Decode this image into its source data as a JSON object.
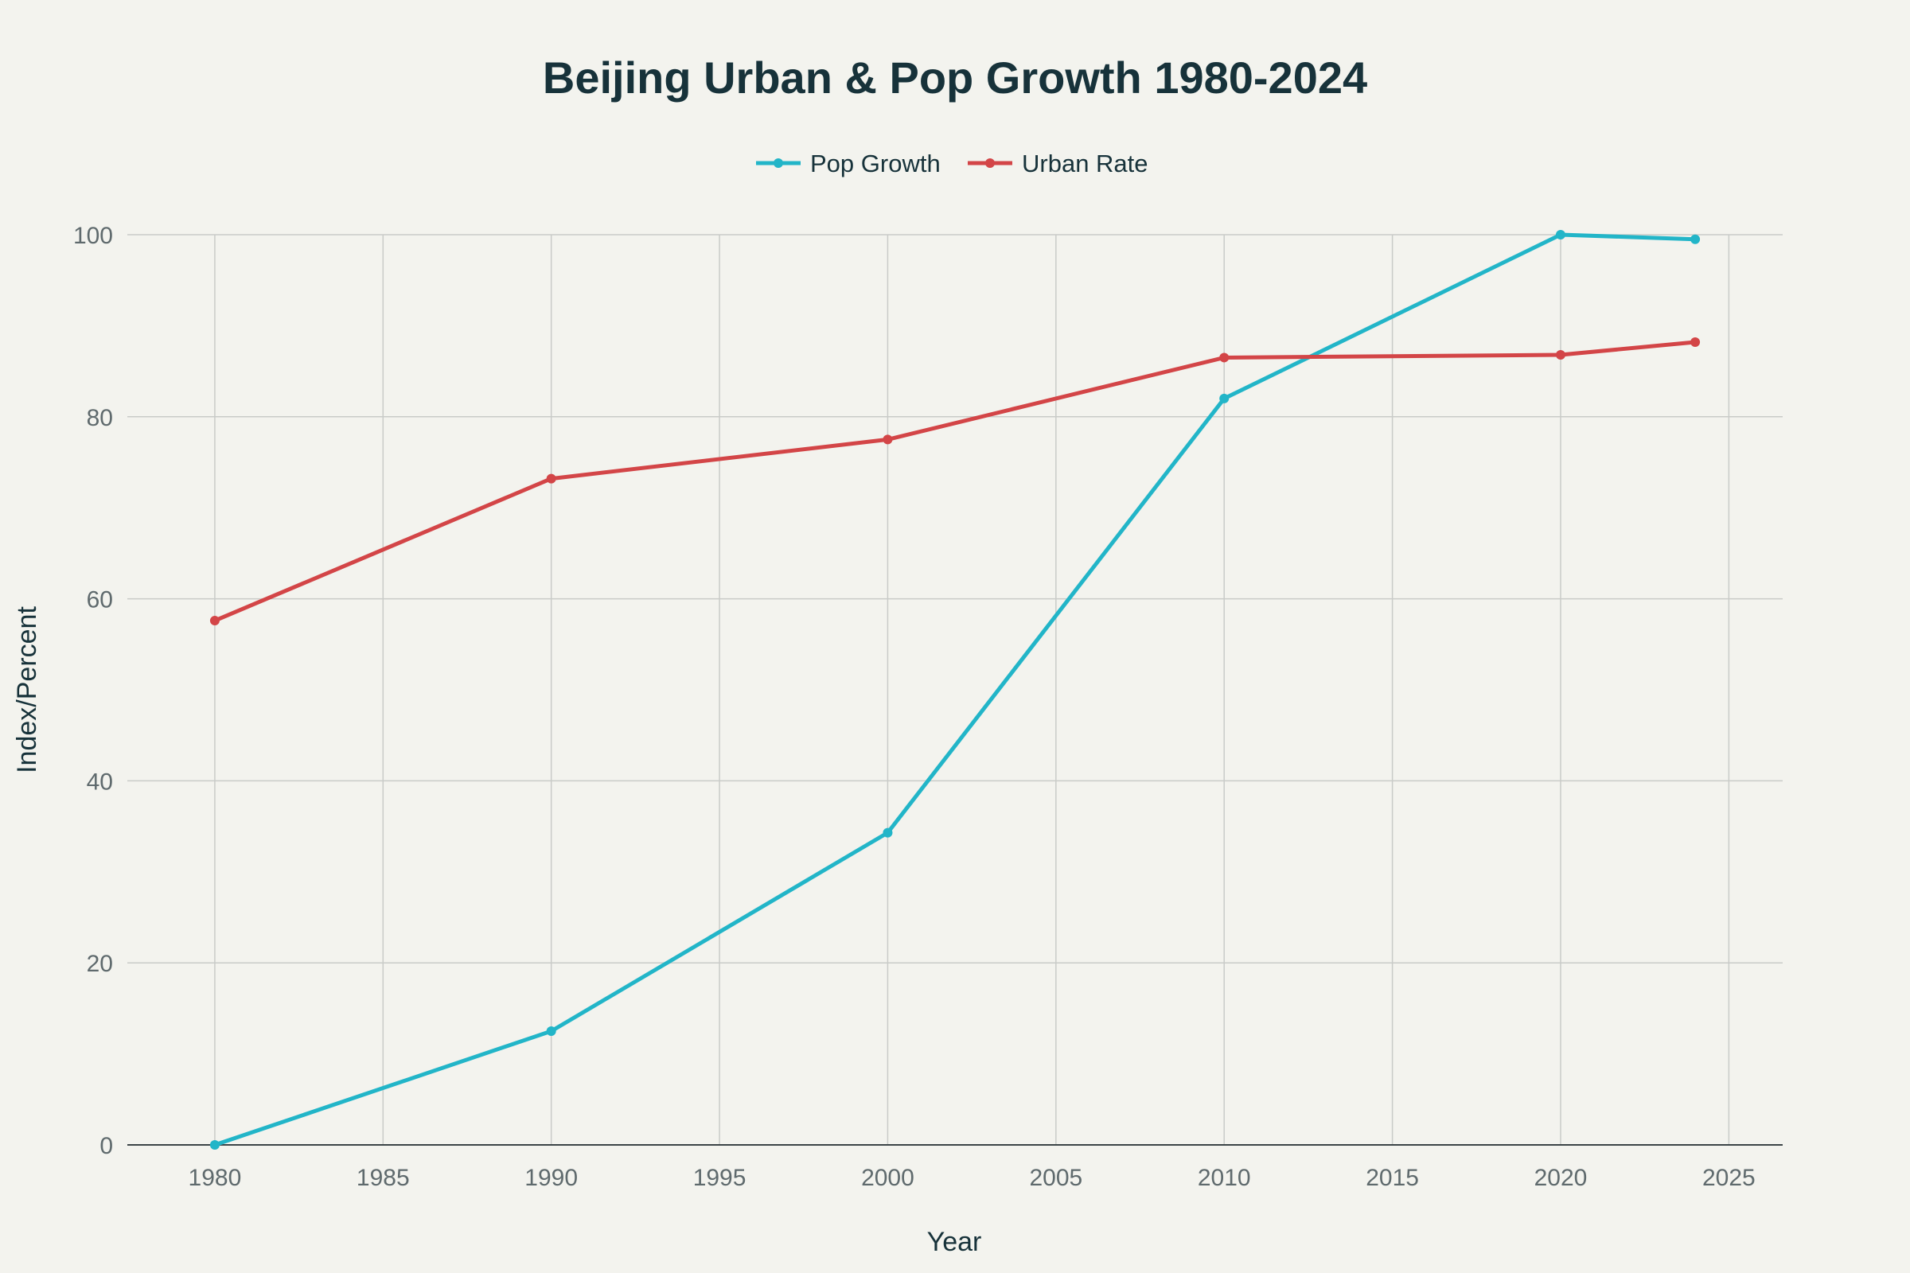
{
  "chart_data": {
    "type": "line",
    "title": "Beijing Urban & Pop Growth 1980-2024",
    "xlabel": "Year",
    "ylabel": "Index/Percent",
    "x": [
      1980,
      1990,
      2000,
      2010,
      2020,
      2024
    ],
    "xlim": [
      1977.4,
      2026.6
    ],
    "ylim": [
      0,
      100
    ],
    "x_ticks": [
      1980,
      1985,
      1990,
      1995,
      2000,
      2005,
      2010,
      2015,
      2020,
      2025
    ],
    "y_ticks": [
      0,
      20,
      40,
      60,
      80,
      100
    ],
    "grid": true,
    "legend_position": "top-center",
    "series": [
      {
        "name": "Pop Growth",
        "color": "#22b5c8",
        "values": [
          0,
          12.5,
          34.3,
          82.0,
          100.0,
          99.5
        ]
      },
      {
        "name": "Urban Rate",
        "color": "#d34547",
        "values": [
          57.6,
          73.2,
          77.5,
          86.5,
          86.8,
          88.2
        ]
      }
    ]
  }
}
